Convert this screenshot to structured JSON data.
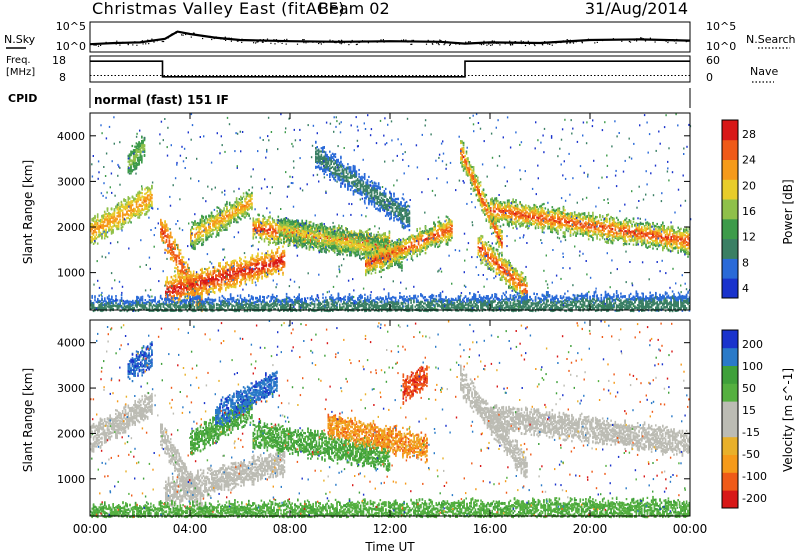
{
  "header": {
    "title": "Christmas Valley East (fitACF)",
    "beam": "Beam 02",
    "date": "31/Aug/2014"
  },
  "nsky_panel": {
    "left_label": "N.Sky",
    "right_label": "N.Search",
    "left_ticks": [
      "10^5",
      "10^0"
    ],
    "right_ticks": [
      "10^5",
      "10^0"
    ]
  },
  "freq_panel": {
    "left_label_line1": "Freq.",
    "left_label_line2": "[MHz]",
    "right_label": "Nave",
    "left_ticks": [
      "18",
      "8"
    ],
    "right_ticks": [
      "60",
      "0"
    ]
  },
  "cpid": {
    "label": "CPID",
    "mode": "normal (fast) 151 IF"
  },
  "x_axis": {
    "label": "Time UT",
    "ticks": [
      "00:00",
      "04:00",
      "08:00",
      "12:00",
      "16:00",
      "20:00",
      "00:00"
    ]
  },
  "colors": {
    "power": [
      "#1a33cc",
      "#2a6ad8",
      "#3a7f64",
      "#3d9b4a",
      "#8fc04a",
      "#e8cc2a",
      "#f59a1a",
      "#ef5a18",
      "#d81818"
    ],
    "velocity": [
      "#d81818",
      "#ef5a18",
      "#f59a1a",
      "#e8b02a",
      "#bcbcb4",
      "#bcbcb4",
      "#55b040",
      "#3fa03a",
      "#2a7ac8",
      "#1a33cc"
    ]
  },
  "chart_data": [
    {
      "type": "line",
      "name": "nsky-nsearch",
      "x": [
        0,
        1,
        2,
        3,
        3.5,
        4,
        5,
        6,
        8,
        10,
        12,
        14,
        15,
        16,
        18,
        20,
        22,
        24
      ],
      "y": [
        1.3,
        1.5,
        1.6,
        2.2,
        3.4,
        3.0,
        2.4,
        2.0,
        1.8,
        1.7,
        1.8,
        1.7,
        1.4,
        1.6,
        1.5,
        2.0,
        2.1,
        1.9
      ],
      "y_scale": "log",
      "xlim": [
        0,
        24
      ]
    },
    {
      "type": "line",
      "name": "frequency-nave",
      "x": [
        0,
        2.9,
        2.9,
        15,
        15,
        24
      ],
      "frequency_mhz": [
        16,
        16,
        10,
        10,
        16,
        16
      ],
      "nave": [
        15,
        15,
        15,
        15,
        15,
        15
      ],
      "ylim_left": [
        8,
        18
      ],
      "ylim_right": [
        0,
        60
      ],
      "xlim": [
        0,
        24
      ]
    },
    {
      "type": "heatmap",
      "name": "power",
      "title": "",
      "ylabel": "Slant Range [km]",
      "colorbar_label": "Power [dB]",
      "colorbar_ticks": [
        "28",
        "24",
        "20",
        "16",
        "12",
        "8",
        "4"
      ],
      "xlim": [
        0,
        24
      ],
      "ylim": [
        180,
        4500
      ],
      "y_ticks": [
        1000,
        2000,
        3000,
        4000
      ],
      "bands": [
        {
          "t0": 0.0,
          "t1": 2.5,
          "r0": 1900,
          "r1": 2700,
          "v0": 14,
          "v1": 24
        },
        {
          "t0": 1.5,
          "t1": 2.2,
          "r0": 3400,
          "r1": 3800,
          "v0": 10,
          "v1": 16
        },
        {
          "t0": 2.8,
          "t1": 4.5,
          "r0": 2000,
          "r1": 300,
          "v0": 20,
          "v1": 28
        },
        {
          "t0": 3.0,
          "t1": 7.8,
          "r0": 600,
          "r1": 1300,
          "v0": 18,
          "v1": 30
        },
        {
          "t0": 4.0,
          "t1": 6.5,
          "r0": 1800,
          "r1": 2600,
          "v0": 10,
          "v1": 24
        },
        {
          "t0": 6.5,
          "t1": 12.0,
          "r0": 2000,
          "r1": 1600,
          "v0": 12,
          "v1": 28
        },
        {
          "t0": 7.5,
          "t1": 12.5,
          "r0": 2000,
          "r1": 1400,
          "v0": 8,
          "v1": 20
        },
        {
          "t0": 9.0,
          "t1": 12.8,
          "r0": 3600,
          "r1": 2200,
          "v0": 4,
          "v1": 10
        },
        {
          "t0": 11.0,
          "t1": 14.5,
          "r0": 1200,
          "r1": 2000,
          "v0": 10,
          "v1": 28
        },
        {
          "t0": 14.8,
          "t1": 16.5,
          "r0": 3700,
          "r1": 1600,
          "v0": 10,
          "v1": 28
        },
        {
          "t0": 15.5,
          "t1": 17.5,
          "r0": 1600,
          "r1": 600,
          "v0": 12,
          "v1": 28
        },
        {
          "t0": 16.0,
          "t1": 24.0,
          "r0": 2400,
          "r1": 1700,
          "v0": 10,
          "v1": 28
        },
        {
          "t0": 0.0,
          "t1": 24.0,
          "r0": 200,
          "r1": 300,
          "v0": 4,
          "v1": 10
        }
      ]
    },
    {
      "type": "heatmap",
      "name": "velocity",
      "title": "",
      "ylabel": "Slant Range [km]",
      "colorbar_label": "Velocity [m s^-1]",
      "colorbar_ticks": [
        "200",
        "100",
        "50",
        "15",
        "-15",
        "-50",
        "-100",
        "-200"
      ],
      "xlim": [
        0,
        24
      ],
      "ylim": [
        180,
        4500
      ],
      "y_ticks": [
        1000,
        2000,
        3000,
        4000
      ],
      "bands": [
        {
          "t0": 0.0,
          "t1": 2.5,
          "r0": 1900,
          "r1": 2700,
          "v0": -10,
          "v1": 10
        },
        {
          "t0": 1.5,
          "t1": 2.5,
          "r0": 3400,
          "r1": 3800,
          "v0": 150,
          "v1": 220
        },
        {
          "t0": 2.8,
          "t1": 4.5,
          "r0": 2000,
          "r1": 400,
          "v0": -10,
          "v1": 10
        },
        {
          "t0": 3.0,
          "t1": 7.8,
          "r0": 700,
          "r1": 1400,
          "v0": -10,
          "v1": 10
        },
        {
          "t0": 4.0,
          "t1": 6.5,
          "r0": 1800,
          "r1": 2600,
          "v0": 30,
          "v1": 80
        },
        {
          "t0": 5.0,
          "t1": 7.5,
          "r0": 2400,
          "r1": 3200,
          "v0": 120,
          "v1": 220
        },
        {
          "t0": 6.5,
          "t1": 12.0,
          "r0": 2000,
          "r1": 1500,
          "v0": 20,
          "v1": 90
        },
        {
          "t0": 9.5,
          "t1": 13.5,
          "r0": 2200,
          "r1": 1700,
          "v0": -120,
          "v1": -30
        },
        {
          "t0": 12.5,
          "t1": 13.5,
          "r0": 3000,
          "r1": 3300,
          "v0": -220,
          "v1": -150
        },
        {
          "t0": 14.8,
          "t1": 17.5,
          "r0": 3200,
          "r1": 1200,
          "v0": -10,
          "v1": 10
        },
        {
          "t0": 16.0,
          "t1": 24.0,
          "r0": 2400,
          "r1": 1800,
          "v0": -10,
          "v1": 10
        },
        {
          "t0": 0.0,
          "t1": 24.0,
          "r0": 200,
          "r1": 300,
          "v0": 20,
          "v1": 60
        }
      ]
    }
  ]
}
